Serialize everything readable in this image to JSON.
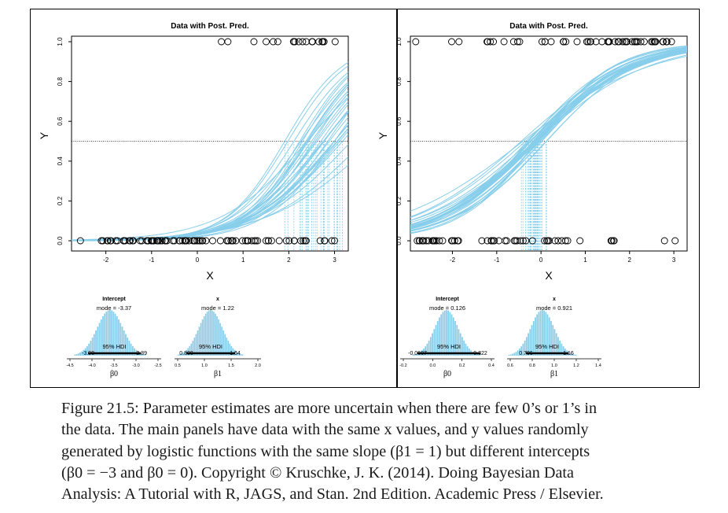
{
  "figure": {
    "panels": [
      {
        "id": "left",
        "title": "Data with Post. Pred.",
        "xlabel": "X",
        "ylabel": "Y",
        "xticks": [
          "-2",
          "-1",
          "0",
          "1",
          "2",
          "3"
        ],
        "yticks": [
          "0.0",
          "0.2",
          "0.4",
          "0.6",
          "0.8",
          "1.0"
        ],
        "beta0": {
          "true_value": -3,
          "label": "β0"
        },
        "beta1": {
          "true_value": 1,
          "label": "β1"
        },
        "hist_intercept": {
          "title": "Intercept",
          "mode_text": "mode = -3.37",
          "hdi_text": "95% HDI",
          "hdi_low": "-3.98",
          "hdi_high": "-2.89",
          "axis_ticks": [
            "-4.5",
            "-4.0",
            "-3.5",
            "-3.0",
            "-2.5"
          ],
          "xlabel": "β0"
        },
        "hist_slope": {
          "title": "x",
          "mode_text": "mode = 1.22",
          "hdi_text": "95% HDI",
          "hdi_low": "0.808",
          "hdi_high": "1.64",
          "axis_ticks": [
            "0.5",
            "1.0",
            "1.5",
            "2.0"
          ],
          "xlabel": "β1"
        }
      },
      {
        "id": "right",
        "title": "Data with Post. Pred.",
        "xlabel": "X",
        "ylabel": "Y",
        "xticks": [
          "-2",
          "-1",
          "0",
          "1",
          "2",
          "3"
        ],
        "yticks": [
          "0.0",
          "0.2",
          "0.4",
          "0.6",
          "0.8",
          "1.0"
        ],
        "beta0": {
          "true_value": 0,
          "label": "β0"
        },
        "beta1": {
          "true_value": 1,
          "label": "β1"
        },
        "hist_intercept": {
          "title": "Intercept",
          "mode_text": "mode = 0.126",
          "hdi_text": "95% HDI",
          "hdi_low": "-0.0607",
          "hdi_high": "0.322",
          "axis_ticks": [
            "-0.2",
            "0.0",
            "0.2",
            "0.4"
          ],
          "xlabel": "β0"
        },
        "hist_slope": {
          "title": "x",
          "mode_text": "mode = 0.921",
          "hdi_text": "95% HDI",
          "hdi_low": "0.706",
          "hdi_high": "1.16",
          "axis_ticks": [
            "0.6",
            "0.8",
            "1.0",
            "1.2",
            "1.4"
          ],
          "xlabel": "β1"
        }
      }
    ],
    "colors": {
      "curve": "#87ceeb",
      "axis": "#000000",
      "caption": "#1a1a1a"
    }
  },
  "caption": {
    "lines": [
      "Figure 21.5: Parameter estimates are more uncertain when there are few 0’s or 1’s in",
      "the data.  The main panels have data with the same x values, and y values randomly",
      "generated by logistic functions with the same slope (β1 = 1) but different intercepts",
      "(β0 = −3 and β0 = 0).   Copyright © Kruschke, J. K. (2014). Doing Bayesian Data",
      "Analysis: A Tutorial with R, JAGS, and Stan. 2nd Edition. Academic Press / Elsevier."
    ]
  }
}
